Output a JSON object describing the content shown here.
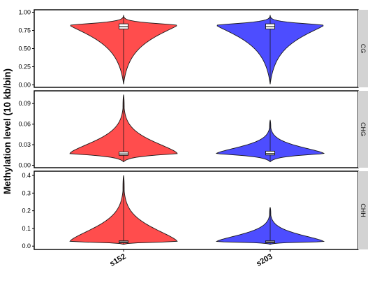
{
  "chart_data": {
    "type": "violin",
    "ylabel": "Methylation level (10 kb/bin)",
    "categories": [
      "s152",
      "s203"
    ],
    "colors": {
      "s152": "#ff4d4d",
      "s203": "#4d4dff"
    },
    "panels": [
      {
        "strip": "CG",
        "ylim": [
          0,
          1.0
        ],
        "yticks": [
          0.0,
          0.25,
          0.5,
          0.75,
          1.0
        ],
        "ytick_labels": [
          "0.00",
          "0.25",
          "0.50",
          "0.75",
          "1.00"
        ],
        "violins": [
          {
            "category": "s152",
            "min": 0.01,
            "max": 0.96,
            "mode": 0.82,
            "q1": 0.77,
            "median": 0.8,
            "q3": 0.84
          },
          {
            "category": "s203",
            "min": 0.01,
            "max": 0.96,
            "mode": 0.82,
            "q1": 0.77,
            "median": 0.8,
            "q3": 0.84
          }
        ]
      },
      {
        "strip": "CHG",
        "ylim": [
          0,
          0.105
        ],
        "yticks": [
          0.0,
          0.03,
          0.06,
          0.09
        ],
        "ytick_labels": [
          "0.00",
          "0.03",
          "0.06",
          "0.09"
        ],
        "violins": [
          {
            "category": "s152",
            "min": 0.005,
            "max": 0.103,
            "mode": 0.017,
            "q1": 0.0145,
            "median": 0.0165,
            "q3": 0.0195
          },
          {
            "category": "s203",
            "min": 0.005,
            "max": 0.066,
            "mode": 0.017,
            "q1": 0.015,
            "median": 0.017,
            "q3": 0.0205
          }
        ]
      },
      {
        "strip": "CHH",
        "ylim": [
          -0.005,
          0.41
        ],
        "yticks": [
          0.0,
          0.1,
          0.2,
          0.3,
          0.4
        ],
        "ytick_labels": [
          "0.0",
          "0.1",
          "0.2",
          "0.3",
          "0.4"
        ],
        "violins": [
          {
            "category": "s152",
            "min": 0.01,
            "max": 0.4,
            "mode": 0.025,
            "q1": 0.019,
            "median": 0.024,
            "q3": 0.03
          },
          {
            "category": "s203",
            "min": 0.01,
            "max": 0.22,
            "mode": 0.025,
            "q1": 0.019,
            "median": 0.024,
            "q3": 0.03
          }
        ]
      }
    ]
  }
}
